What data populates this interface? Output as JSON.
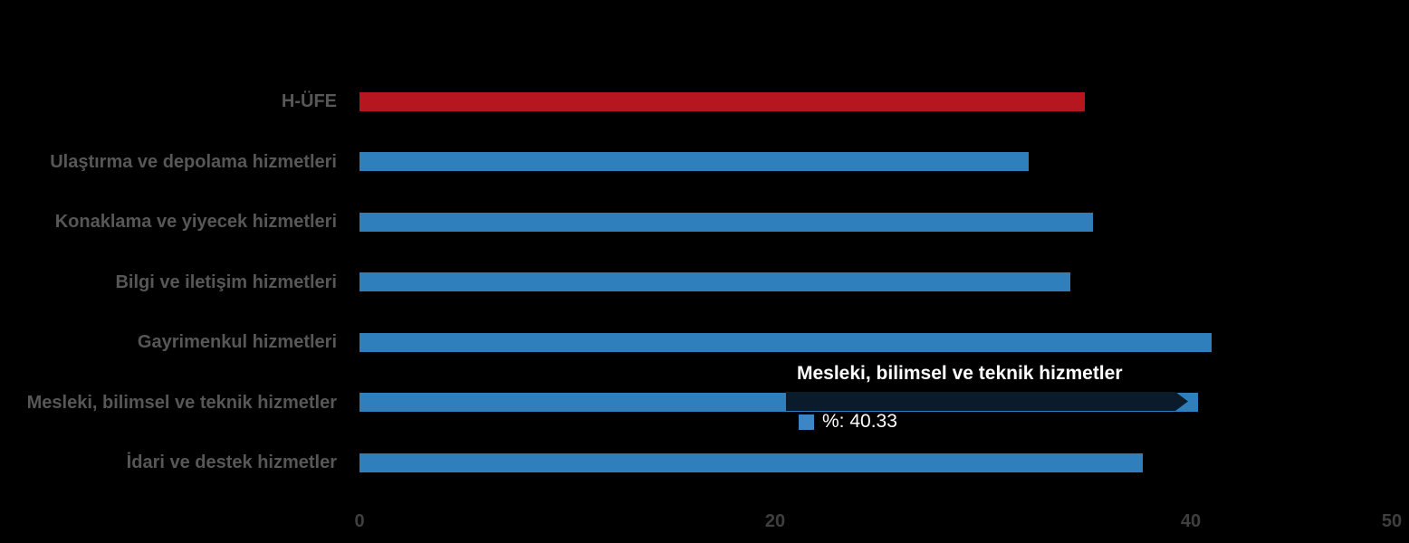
{
  "chart_data": {
    "type": "bar",
    "orientation": "horizontal",
    "categories": [
      "H-ÜFE",
      "Ulaştırma ve depolama hizmetleri",
      "Konaklama ve yiyecek hizmetleri",
      "Bilgi ve iletişim hizmetleri",
      "Gayrimenkul hizmetleri",
      "Mesleki, bilimsel ve teknik hizmetler",
      "İdari ve destek hizmetler"
    ],
    "values": [
      34.9,
      32.2,
      35.3,
      34.2,
      41.0,
      40.33,
      37.7
    ],
    "bar_colors": [
      "#B5161F",
      "#2F7FBC",
      "#2F7FBC",
      "#2F7FBC",
      "#2F7FBC",
      "#2F7FBC",
      "#2F7FBC"
    ],
    "highlighted_category_index": 5,
    "value_unit": "%",
    "xlabel": "",
    "ylabel": "",
    "xlim": [
      0,
      50
    ],
    "x_ticks": [
      "0",
      "20",
      "40",
      "50"
    ],
    "grid": false,
    "legend_position": "none",
    "background_color": "#000000",
    "category_label_color": "#575757",
    "tick_label_color": "#3F3F3F"
  },
  "tooltip": {
    "title": "Mesleki, bilimsel ve teknik hizmetler",
    "series_name": "%",
    "value": 40.33,
    "value_text": "%: 40.33",
    "text_color": "#FFFFFF",
    "swatch_color": "#3E86C3",
    "overlay_color": "#0A1C2C"
  }
}
